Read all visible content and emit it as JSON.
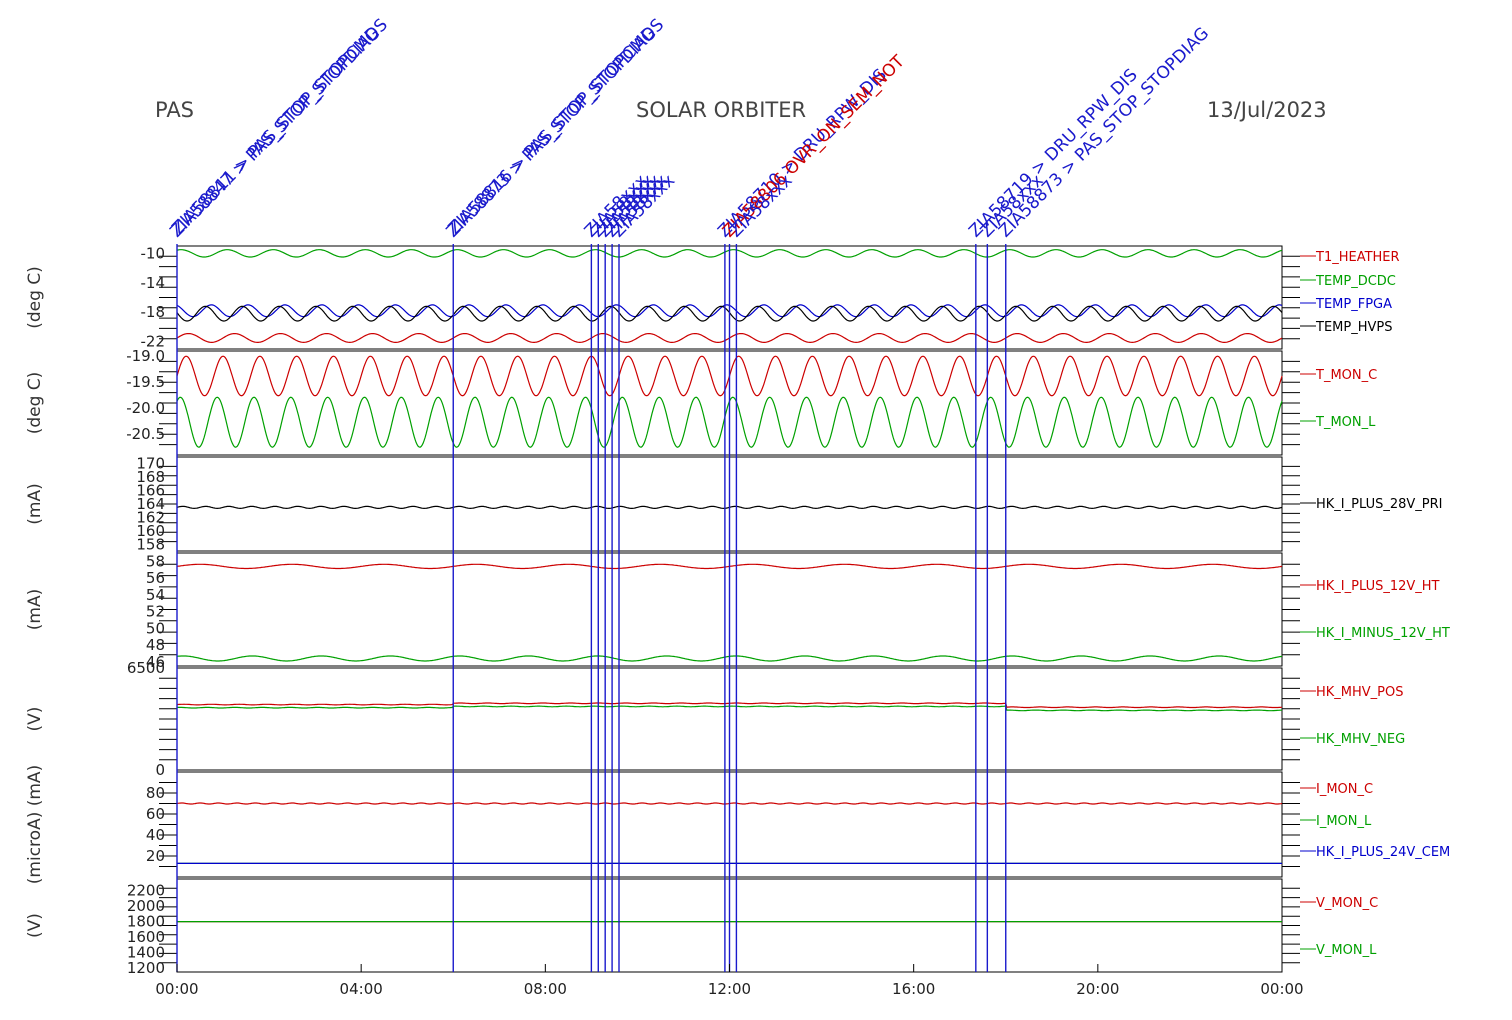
{
  "header": {
    "left": "PAS",
    "center": "SOLAR ORBITER",
    "right": "13/Jul/2023"
  },
  "colors": {
    "red": "#cc0000",
    "green": "#00a000",
    "blue": "#0000cc",
    "black": "#000000",
    "marker": "#1a1acc"
  },
  "chart_data": {
    "type": "line",
    "x_ticks": [
      "00:00",
      "04:00",
      "08:00",
      "12:00",
      "16:00",
      "20:00",
      "00:00"
    ],
    "x_range_hours": [
      0,
      24
    ],
    "event_markers": [
      {
        "t": 0.0,
        "labels": [
          "ZIA58847 > PAS_STOP_STOPDIAG",
          "ZIA58811 > PAS_STOP_STOPCMDS"
        ]
      },
      {
        "t": 6.0,
        "labels": [
          "ZIA58873 > PAS_STOP_STOPDIAG",
          "ZIA58816 > PAS_STOP_STOPCMDS"
        ]
      },
      {
        "t": 9.0,
        "labels": [
          "ZIA58xxx"
        ]
      },
      {
        "t": 9.15,
        "labels": [
          "ZIA58xxx"
        ]
      },
      {
        "t": 9.3,
        "labels": [
          "ZIA58xxx"
        ]
      },
      {
        "t": 9.45,
        "labels": [
          "ZIA58xxx"
        ]
      },
      {
        "t": 9.6,
        "labels": [
          "ZIA58xxx"
        ]
      },
      {
        "t": 11.9,
        "labels": [
          "ZIA58710 > DRU_RPW_DIS"
        ]
      },
      {
        "t": 12.0,
        "labels": [
          "ZIA58806 OVR_ON_SEM_NOT"
        ]
      },
      {
        "t": 12.15,
        "labels": [
          "ZIA58xxx"
        ]
      },
      {
        "t": 17.35,
        "labels": [
          "ZIA58719 > DRU_RPW_DIS"
        ]
      },
      {
        "t": 17.6,
        "labels": [
          "ZIA58xxx"
        ]
      },
      {
        "t": 18.0,
        "labels": [
          "ZIA58873 > PAS_STOP_STOPDIAG"
        ]
      }
    ],
    "panels": [
      {
        "ylabel": "(deg C)",
        "yticks": [
          "-10",
          "-14",
          "-18",
          "-22"
        ],
        "ylim": [
          -23,
          -9
        ],
        "series": [
          {
            "name": "T1_HEATHER",
            "color": "red",
            "mean": -21.5,
            "amp": 0.6,
            "period": 1.0
          },
          {
            "name": "TEMP_DCDC",
            "color": "green",
            "mean": -10.0,
            "amp": 0.5,
            "period": 1.0
          },
          {
            "name": "TEMP_FPGA",
            "color": "blue",
            "mean": -17.8,
            "amp": 0.8,
            "period": 0.8
          },
          {
            "name": "TEMP_HVPS",
            "color": "black",
            "mean": -18.2,
            "amp": 1.0,
            "period": 0.8
          }
        ]
      },
      {
        "ylabel": "(deg C)",
        "yticks": [
          "-19.0",
          "-19.5",
          "-20.0",
          "-20.5"
        ],
        "ylim": [
          -20.9,
          -18.9
        ],
        "series": [
          {
            "name": "T_MON_C",
            "color": "red",
            "mean": -19.38,
            "amp": 0.38,
            "period": 0.8
          },
          {
            "name": "T_MON_L",
            "color": "green",
            "mean": -20.27,
            "amp": 0.48,
            "period": 0.8
          }
        ]
      },
      {
        "ylabel": "(mA)",
        "yticks": [
          "158",
          "160",
          "162",
          "164",
          "166",
          "168",
          "170"
        ],
        "ylim": [
          157,
          171
        ],
        "series": [
          {
            "name": "HK_I_PLUS_28V_PRI",
            "color": "black",
            "mean": 163.5,
            "amp": 0.15,
            "period": 0.5
          }
        ]
      },
      {
        "ylabel": "(mA)",
        "yticks": [
          "46",
          "48",
          "50",
          "52",
          "54",
          "56",
          "58"
        ],
        "ylim": [
          45.5,
          59
        ],
        "series": [
          {
            "name": "HK_I_PLUS_12V_HT",
            "color": "red",
            "mean": 57.4,
            "amp": 0.25,
            "period": 2.0
          },
          {
            "name": "HK_I_MINUS_12V_HT",
            "color": "green",
            "mean": 46.4,
            "amp": 0.3,
            "period": 1.5
          }
        ]
      },
      {
        "ylabel": "(V)",
        "yticks": [
          "0",
          "6500"
        ],
        "ylim": [
          0,
          6500
        ],
        "series": [
          {
            "name": "HK_MHV_POS",
            "color": "red",
            "mean": 4250,
            "amp": 20,
            "period": 0.6
          },
          {
            "name": "HK_MHV_NEG",
            "color": "green",
            "mean": 4050,
            "amp": 20,
            "period": 0.6
          }
        ]
      },
      {
        "ylabel": "(microA) (mA)",
        "yticks": [
          "20",
          "40",
          "60",
          "80"
        ],
        "ylim": [
          0,
          100
        ],
        "series": [
          {
            "name": "I_MON_C",
            "color": "red",
            "mean": 70,
            "amp": 0.5,
            "period": 0.4
          },
          {
            "name": "I_MON_L",
            "color": "green",
            "mean": 13,
            "amp": 0,
            "period": 1
          },
          {
            "name": "HK_I_PLUS_24V_CEM",
            "color": "blue",
            "mean": 13,
            "amp": 0,
            "period": 1
          }
        ]
      },
      {
        "ylabel": "(V)",
        "yticks": [
          "1200",
          "1400",
          "1600",
          "1800",
          "2000",
          "2200"
        ],
        "ylim": [
          1150,
          2350
        ],
        "series": [
          {
            "name": "V_MON_C",
            "color": "red",
            "mean": 1800,
            "amp": 0,
            "period": 1
          },
          {
            "name": "V_MON_L",
            "color": "green",
            "mean": 1800,
            "amp": 0,
            "period": 1
          }
        ]
      }
    ]
  }
}
